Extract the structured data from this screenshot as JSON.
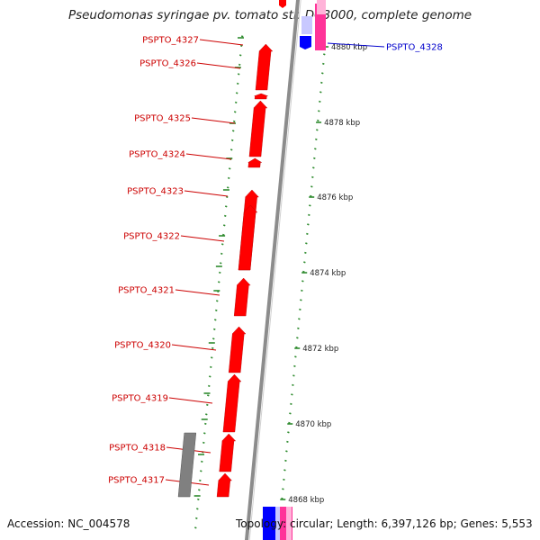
{
  "title": "Pseudomonas syringae pv. tomato str. DC3000, complete genome",
  "accession_text": "Accession: NC_004578",
  "summary_text": "Topology: circular; Length: 6,397,126 bp; Genes: 5,553",
  "forward_label_color": "#0000cc",
  "reverse_label_color": "#cc0000",
  "gene_color": "#ff0000",
  "forward_gene_color": "#0000ff",
  "forward_gene_light_color": "#c8c8ff",
  "rna_color": "#ff3399",
  "rna_light_color": "#ffb3d9",
  "pseudo_color": "#808080",
  "backbone_color": "#8c8c8c",
  "dot_color": "#2e8b2e",
  "reverse_genes": [
    {
      "label": "PSPTO_4327"
    },
    {
      "label": "PSPTO_4326"
    },
    {
      "label": "PSPTO_4325"
    },
    {
      "label": "PSPTO_4324"
    },
    {
      "label": "PSPTO_4323"
    },
    {
      "label": "PSPTO_4322"
    },
    {
      "label": "PSPTO_4321"
    },
    {
      "label": "PSPTO_4320"
    },
    {
      "label": "PSPTO_4319"
    },
    {
      "label": "PSPTO_4318"
    },
    {
      "label": "PSPTO_4317"
    }
  ],
  "forward_genes": [
    {
      "label": "PSPTO_4328"
    }
  ],
  "ruler_ticks": [
    "4880 kbp",
    "4878 kbp",
    "4876 kbp",
    "4874 kbp",
    "4872 kbp",
    "4870 kbp",
    "4868 kbp"
  ]
}
